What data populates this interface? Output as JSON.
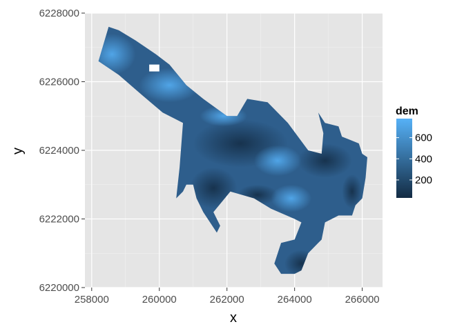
{
  "chart_data": {
    "type": "heatmap",
    "xlabel": "x",
    "ylabel": "y",
    "xlim": [
      257800,
      266600
    ],
    "ylim": [
      6220000,
      6228000
    ],
    "x_ticks": [
      258000,
      260000,
      262000,
      264000,
      266000
    ],
    "y_ticks": [
      6220000,
      6222000,
      6224000,
      6226000,
      6228000
    ],
    "grid": true,
    "legend": {
      "title": "dem",
      "position": "right",
      "range": [
        30,
        780
      ],
      "ticks": [
        200,
        400,
        600
      ],
      "low_color": "#132B43",
      "high_color": "#56B1F7"
    },
    "region": [
      [
        258500,
        6227600
      ],
      [
        258800,
        6227500
      ],
      [
        259300,
        6227200
      ],
      [
        259900,
        6226800
      ],
      [
        260300,
        6226500
      ],
      [
        260800,
        6225900
      ],
      [
        261300,
        6225500
      ],
      [
        262000,
        6225000
      ],
      [
        262300,
        6225000
      ],
      [
        262600,
        6225500
      ],
      [
        263200,
        6225400
      ],
      [
        263800,
        6224800
      ],
      [
        264400,
        6224000
      ],
      [
        264800,
        6223900
      ],
      [
        264850,
        6224500
      ],
      [
        264700,
        6225100
      ],
      [
        264900,
        6224800
      ],
      [
        265300,
        6224700
      ],
      [
        265400,
        6224400
      ],
      [
        265900,
        6224200
      ],
      [
        266000,
        6223900
      ],
      [
        266150,
        6223800
      ],
      [
        266100,
        6223200
      ],
      [
        266000,
        6222600
      ],
      [
        265800,
        6222400
      ],
      [
        265700,
        6222100
      ],
      [
        265300,
        6222100
      ],
      [
        264900,
        6221900
      ],
      [
        264800,
        6221400
      ],
      [
        264700,
        6221300
      ],
      [
        264400,
        6221000
      ],
      [
        264200,
        6220500
      ],
      [
        264000,
        6220400
      ],
      [
        263600,
        6220400
      ],
      [
        263400,
        6220700
      ],
      [
        263600,
        6221300
      ],
      [
        264000,
        6221400
      ],
      [
        264200,
        6221900
      ],
      [
        264000,
        6222000
      ],
      [
        263300,
        6222300
      ],
      [
        262800,
        6222600
      ],
      [
        262100,
        6222800
      ],
      [
        261600,
        6222200
      ],
      [
        261800,
        6221800
      ],
      [
        261700,
        6221600
      ],
      [
        261500,
        6221900
      ],
      [
        261300,
        6222200
      ],
      [
        261100,
        6222600
      ],
      [
        261000,
        6223000
      ],
      [
        260800,
        6223000
      ],
      [
        260700,
        6222800
      ],
      [
        260500,
        6222600
      ],
      [
        260600,
        6223500
      ],
      [
        260700,
        6224800
      ],
      [
        260100,
        6225100
      ],
      [
        259500,
        6225600
      ],
      [
        258800,
        6226200
      ],
      [
        258200,
        6226600
      ]
    ],
    "hole": [
      [
        259700,
        6226500
      ],
      [
        260000,
        6226500
      ],
      [
        260000,
        6226300
      ],
      [
        259700,
        6226300
      ]
    ],
    "dark_zones": [
      [
        262400,
        6224200,
        1400,
        700,
        110
      ],
      [
        264900,
        6223700,
        800,
        500,
        90
      ],
      [
        261600,
        6222900,
        700,
        600,
        70
      ],
      [
        265700,
        6222800,
        300,
        500,
        120
      ],
      [
        264200,
        6220700,
        500,
        400,
        130
      ],
      [
        262900,
        6222700,
        600,
        300,
        160
      ]
    ],
    "bright_zones": [
      [
        258600,
        6226800,
        700,
        600,
        760
      ],
      [
        260300,
        6225900,
        900,
        500,
        560
      ],
      [
        263500,
        6223700,
        700,
        450,
        480
      ],
      [
        261900,
        6225000,
        700,
        300,
        420
      ],
      [
        263900,
        6222600,
        600,
        400,
        460
      ]
    ]
  }
}
